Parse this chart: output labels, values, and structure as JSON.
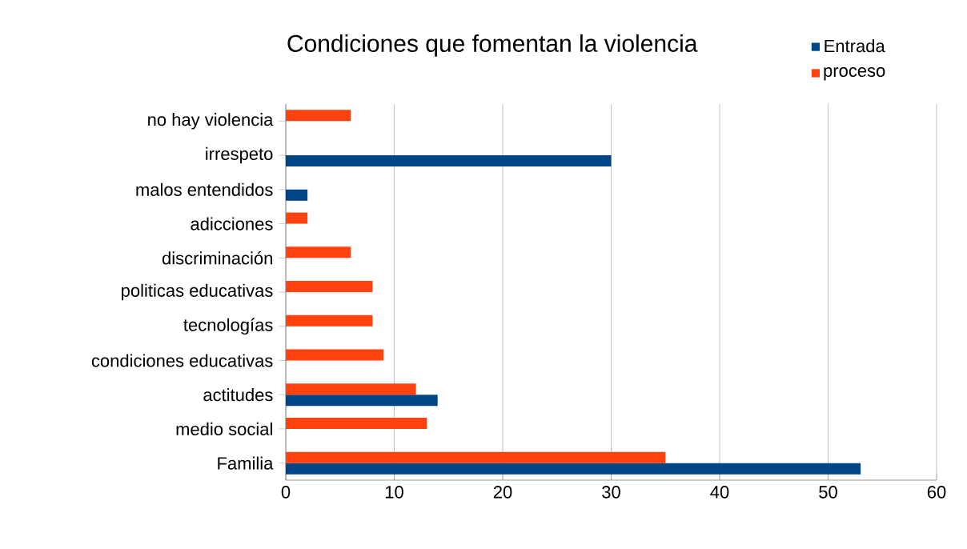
{
  "chart_data": {
    "type": "bar",
    "orientation": "horizontal",
    "title": "Condiciones que fomentan la violencia",
    "categories": [
      "no hay  violencia",
      "irrespeto",
      "malos entendidos",
      "adicciones",
      "discriminación",
      "politicas educativas",
      "tecnologías",
      "condiciones educativas",
      "actitudes",
      "medio social",
      "Familia"
    ],
    "series": [
      {
        "name": "Entrada",
        "color": "#004586",
        "values": [
          null,
          30,
          2,
          null,
          null,
          null,
          null,
          null,
          14,
          null,
          53
        ]
      },
      {
        "name": "proceso",
        "color": "#ff420e",
        "values": [
          6,
          null,
          null,
          2,
          6,
          8,
          8,
          9,
          12,
          13,
          35
        ]
      }
    ],
    "xlim": [
      0,
      60
    ],
    "xticks": [
      0,
      10,
      20,
      30,
      40,
      50,
      60
    ],
    "grid": "x",
    "legend": "top right"
  }
}
